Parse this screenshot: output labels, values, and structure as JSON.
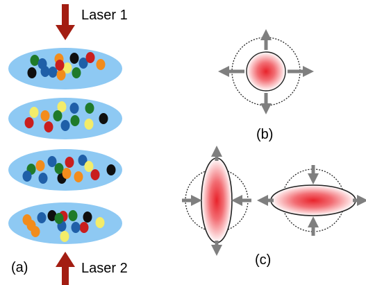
{
  "labels": {
    "laser1": "Laser 1",
    "laser2": "Laser 2",
    "panel_a": "(a)",
    "panel_b": "(b)",
    "panel_c": "(c)"
  },
  "colors": {
    "cloud_fill": "#8ec9f3",
    "laser_arrow": "#a31d12",
    "gray_arrow": "#7f7f7f",
    "hot_core": "#e8232b",
    "dot_black": "#0f0f0f",
    "dot_blue": "#1f5fa8",
    "dot_orange": "#f28c1c",
    "dot_green": "#1f7a2a",
    "dot_red": "#c91e1e",
    "dot_yellow": "#f3ec6a"
  },
  "clouds": [
    {
      "dots": [
        "blue",
        "green",
        "blue",
        "orange",
        "black",
        "red",
        "orange",
        "blue",
        "yellow",
        "black",
        "orange",
        "blue",
        "red",
        "green"
      ]
    },
    {
      "dots": [
        "yellow",
        "orange",
        "yellow",
        "green",
        "blue",
        "green",
        "red",
        "blue",
        "black",
        "green",
        "red",
        "yellow"
      ]
    },
    {
      "dots": [
        "orange",
        "green",
        "blue",
        "red",
        "blue",
        "black",
        "blue",
        "blue",
        "black",
        "orange",
        "red",
        "green",
        "yellow",
        "orange"
      ]
    },
    {
      "dots": [
        "orange",
        "blue",
        "black",
        "green",
        "red",
        "black",
        "yellow",
        "orange",
        "blue",
        "red",
        "green",
        "orange",
        "yellow",
        "blue"
      ]
    }
  ]
}
